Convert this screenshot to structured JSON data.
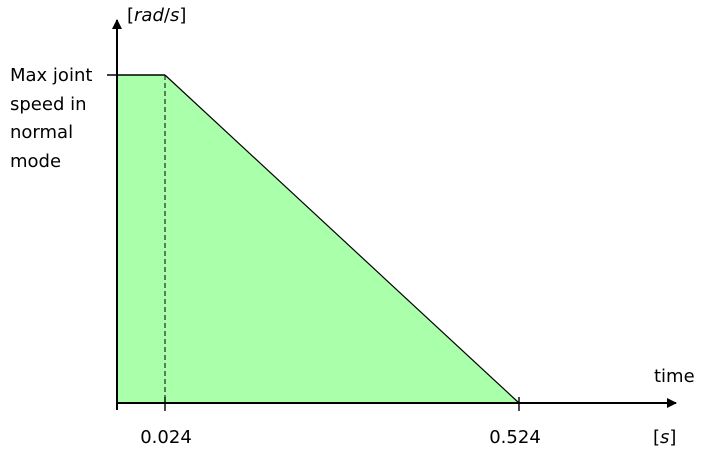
{
  "diagram": {
    "y_axis": {
      "label_open": "[",
      "label_unit": "rad",
      "label_sep": "/",
      "label_time": "s",
      "label_close": "]"
    },
    "x_axis": {
      "label": "time",
      "unit_open": "[",
      "unit_var": "s",
      "unit_close": "]"
    },
    "max_speed_label": [
      "Max joint",
      "speed in",
      "normal",
      "mode"
    ],
    "ticks": [
      {
        "label": "0.024",
        "value": 0.024
      },
      {
        "label": "0.524",
        "value": 0.524
      }
    ],
    "profile": {
      "hold_until": 0.024,
      "stop_at": 0.524
    },
    "colors": {
      "fill": "#aaffaa",
      "outline": "#000000",
      "axis": "#000000"
    }
  }
}
